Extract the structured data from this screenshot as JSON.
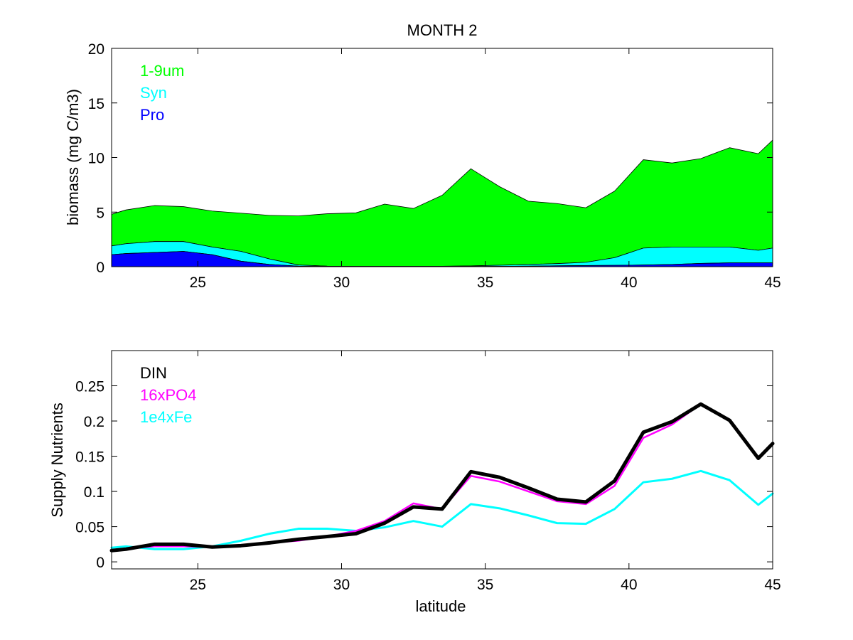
{
  "figure_title": "MONTH 2",
  "chart_data": [
    {
      "type": "area",
      "stacked": true,
      "xlabel": "",
      "ylabel": "biomass (mg C/m3)",
      "xlim": [
        22,
        45
      ],
      "ylim": [
        0,
        20
      ],
      "xticks": [
        25,
        30,
        35,
        40,
        45
      ],
      "yticks": [
        0,
        5,
        10,
        15,
        20
      ],
      "grid": false,
      "legend_placement": "top-left",
      "x": [
        22,
        22.5,
        23.5,
        24.5,
        25.5,
        26.5,
        27.5,
        28.5,
        29.5,
        30.5,
        31.5,
        32.5,
        33.5,
        34.5,
        35.5,
        36.5,
        37.5,
        38.5,
        39.5,
        40.5,
        41.5,
        42.5,
        43.5,
        44.5,
        45
      ],
      "series": [
        {
          "name": "Pro",
          "color": "#0000ff",
          "values": [
            1.1,
            1.2,
            1.3,
            1.4,
            1.1,
            0.5,
            0.2,
            0.05,
            0.02,
            0.01,
            0.01,
            0.01,
            0.01,
            0.02,
            0.03,
            0.05,
            0.08,
            0.1,
            0.12,
            0.15,
            0.2,
            0.3,
            0.35,
            0.35,
            0.35
          ]
        },
        {
          "name": "Syn",
          "color": "#00ffff",
          "values": [
            0.8,
            0.9,
            1.0,
            0.9,
            0.7,
            0.9,
            0.5,
            0.1,
            0.03,
            0.02,
            0.02,
            0.02,
            0.03,
            0.05,
            0.1,
            0.15,
            0.2,
            0.3,
            0.7,
            1.55,
            1.6,
            1.5,
            1.45,
            1.15,
            1.35
          ]
        },
        {
          "name": "1-9um",
          "color": "#00ff00",
          "values": [
            2.9,
            3.1,
            3.3,
            3.2,
            3.3,
            3.5,
            4.0,
            4.5,
            4.8,
            4.9,
            5.7,
            5.3,
            6.5,
            8.9,
            7.2,
            5.8,
            5.5,
            5.0,
            6.1,
            8.1,
            7.7,
            8.1,
            9.1,
            8.85,
            9.9
          ]
        }
      ]
    },
    {
      "type": "line",
      "xlabel": "latitude",
      "ylabel": "Supply Nutrients",
      "xlim": [
        22,
        45
      ],
      "ylim": [
        -0.01,
        0.3
      ],
      "xticks": [
        25,
        30,
        35,
        40,
        45
      ],
      "yticks": [
        0,
        0.05,
        0.1,
        0.15,
        0.2,
        0.25
      ],
      "ytick_labels": [
        "0",
        "0.05",
        "0.1",
        "0.15",
        "0.2",
        "0.25"
      ],
      "grid": false,
      "legend_placement": "top-left",
      "x": [
        22,
        22.5,
        23.5,
        24.5,
        25.5,
        26.5,
        27.5,
        28.5,
        29.5,
        30.5,
        31.5,
        32.5,
        33.5,
        34.5,
        35.5,
        36.5,
        37.5,
        38.5,
        39.5,
        40.5,
        41.5,
        42.5,
        43.5,
        44.5,
        45
      ],
      "series": [
        {
          "name": "DIN",
          "color": "#000000",
          "width": 5,
          "values": [
            0.016,
            0.018,
            0.025,
            0.025,
            0.021,
            0.023,
            0.027,
            0.032,
            0.036,
            0.04,
            0.055,
            0.078,
            0.075,
            0.128,
            0.12,
            0.105,
            0.089,
            0.085,
            0.115,
            0.184,
            0.199,
            0.224,
            0.201,
            0.147,
            0.168
          ]
        },
        {
          "name": "16xPO4",
          "color": "#ff00ff",
          "width": 2.5,
          "values": [
            0.017,
            0.019,
            0.022,
            0.022,
            0.021,
            0.024,
            0.027,
            0.03,
            0.036,
            0.044,
            0.058,
            0.083,
            0.075,
            0.122,
            0.114,
            0.1,
            0.086,
            0.082,
            0.108,
            0.176,
            0.195,
            0.224,
            0.201,
            0.147,
            0.168
          ]
        },
        {
          "name": "1e4xFe",
          "color": "#00ffff",
          "width": 3,
          "values": [
            0.02,
            0.022,
            0.018,
            0.018,
            0.022,
            0.03,
            0.04,
            0.047,
            0.047,
            0.044,
            0.049,
            0.058,
            0.05,
            0.082,
            0.076,
            0.066,
            0.055,
            0.054,
            0.075,
            0.113,
            0.118,
            0.129,
            0.116,
            0.081,
            0.097
          ]
        }
      ]
    }
  ]
}
